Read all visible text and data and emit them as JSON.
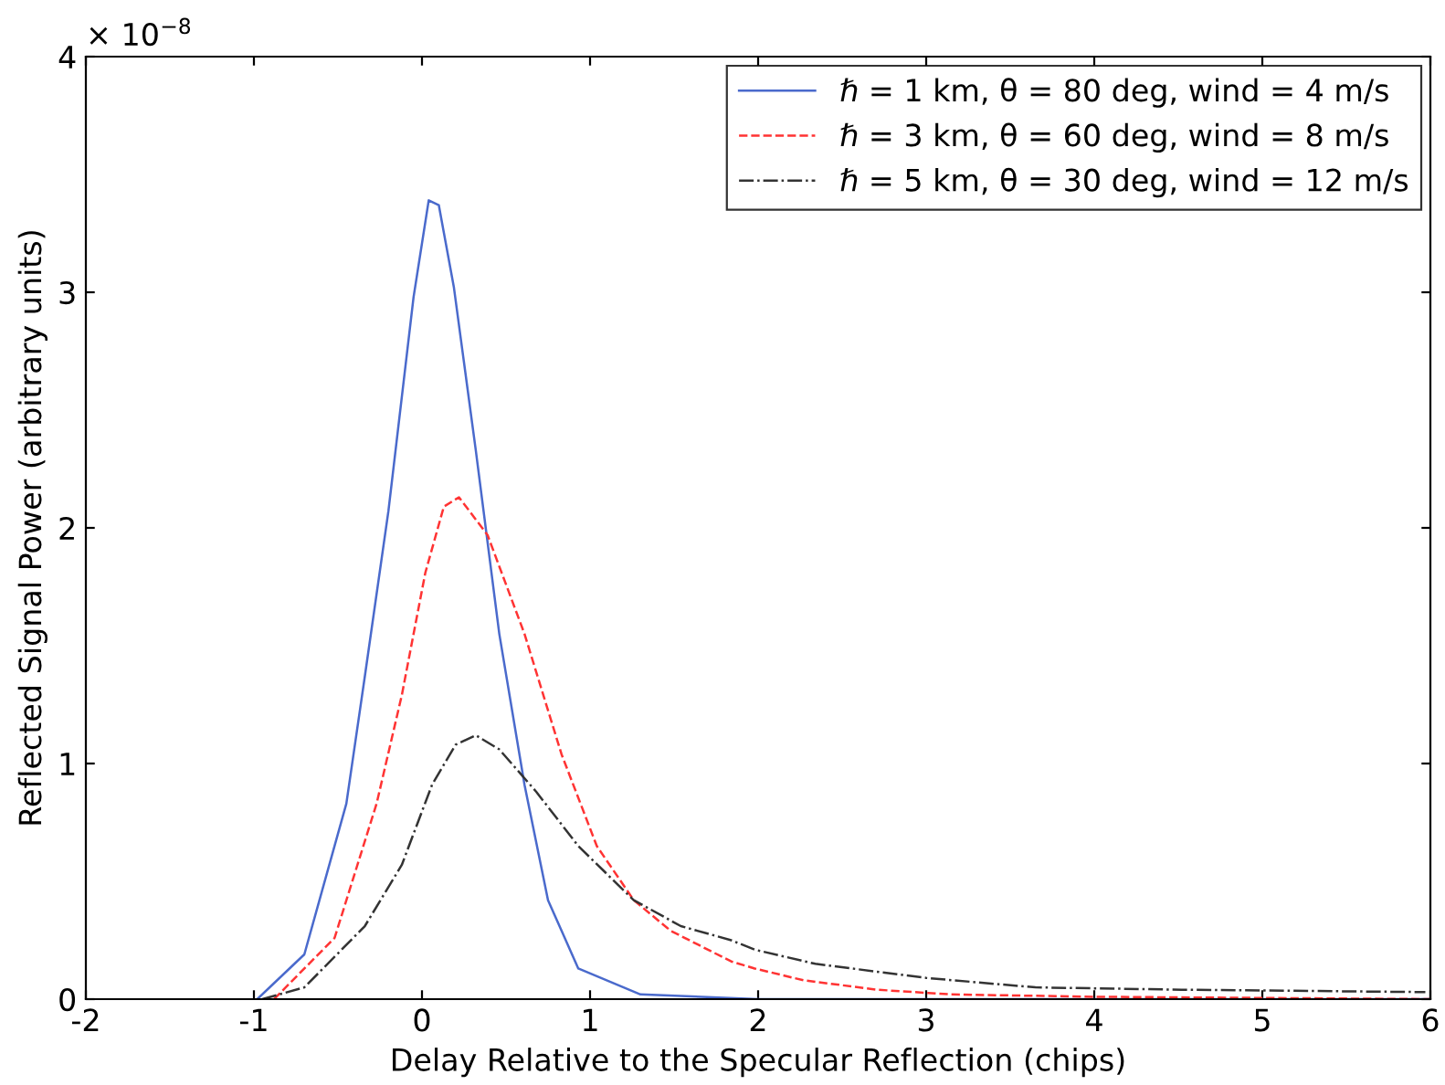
{
  "chart_data": {
    "type": "line",
    "xlabel": "Delay Relative to the Specular Reflection (chips)",
    "ylabel": "Reflected Signal Power (arbitrary units)",
    "annotations": [
      "× 10$^{−8}$"
    ],
    "xlim": [
      -2,
      6
    ],
    "xticks": [
      -2,
      -1,
      0,
      1,
      2,
      3,
      4,
      5,
      6
    ],
    "ylim": [
      0,
      4
    ],
    "yticks": [
      0,
      1,
      2,
      3,
      4
    ],
    "grid": false,
    "legend": "top right",
    "series": [
      {
        "name": "ℏ = 1 km, θ = 80 deg, wind = 4 m/s",
        "color": "#4a6acc",
        "line_style": "solid",
        "x": [
          -0.98,
          -0.7,
          -0.45,
          -0.34,
          -0.2,
          -0.05,
          0.04,
          0.1,
          0.19,
          0.32,
          0.46,
          0.61,
          0.75,
          0.93,
          1.3,
          2,
          6
        ],
        "values": [
          0,
          0.19,
          0.83,
          1.37,
          2.07,
          2.98,
          3.39,
          3.37,
          3.02,
          2.33,
          1.55,
          0.91,
          0.42,
          0.13,
          0.02,
          0,
          0
        ]
      },
      {
        "name": "ℏ = 3 km, θ = 60 deg, wind = 8 m/s",
        "color": "#ff3333",
        "line_style": "dashed",
        "x": [
          -0.88,
          -0.52,
          -0.27,
          -0.12,
          0.02,
          0.13,
          0.22,
          0.39,
          0.61,
          0.83,
          1.04,
          1.26,
          1.48,
          1.84,
          1.98,
          2.27,
          2.71,
          3.15,
          4,
          6
        ],
        "values": [
          0,
          0.26,
          0.83,
          1.29,
          1.81,
          2.09,
          2.13,
          1.97,
          1.55,
          1.04,
          0.65,
          0.42,
          0.29,
          0.16,
          0.13,
          0.08,
          0.04,
          0.02,
          0.01,
          0
        ]
      },
      {
        "name": "ℏ = 5 km, θ = 30 deg, wind = 12 m/s",
        "color": "#333333",
        "line_style": "dashdot",
        "x": [
          -0.95,
          -0.7,
          -0.34,
          -0.12,
          0.06,
          0.2,
          0.32,
          0.46,
          0.68,
          0.93,
          1.26,
          1.54,
          1.84,
          1.98,
          2.34,
          3,
          3.65,
          4.52,
          5.97
        ],
        "values": [
          0,
          0.05,
          0.31,
          0.57,
          0.91,
          1.08,
          1.12,
          1.06,
          0.88,
          0.65,
          0.42,
          0.31,
          0.25,
          0.21,
          0.15,
          0.09,
          0.05,
          0.04,
          0.03
        ]
      }
    ]
  }
}
